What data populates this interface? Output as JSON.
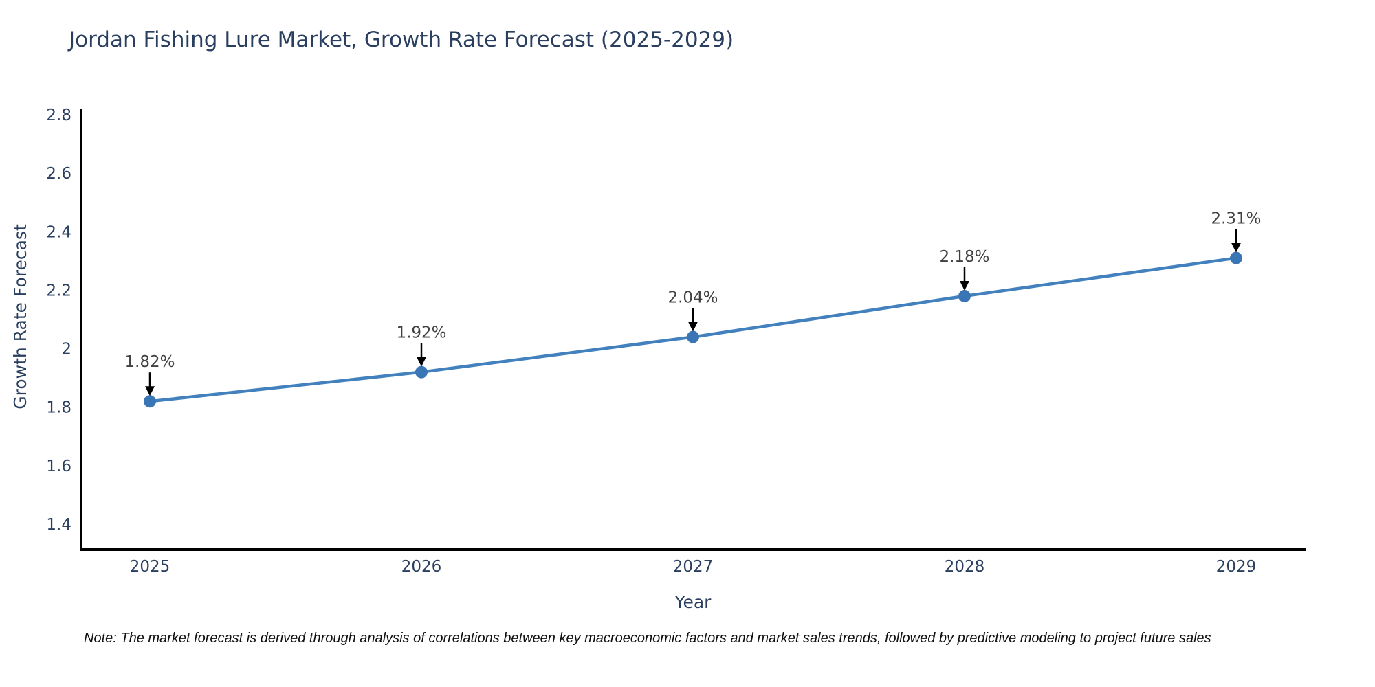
{
  "note": "Note: The market forecast is derived through analysis of correlations between key macroeconomic factors and market sales trends, followed by predictive modeling to project future sales",
  "chart_data": {
    "type": "line",
    "title": "Jordan Fishing Lure Market, Growth Rate Forecast (2025-2029)",
    "xlabel": "Year",
    "ylabel": "Growth Rate Forecast",
    "categories": [
      "2025",
      "2026",
      "2027",
      "2028",
      "2029"
    ],
    "series": [
      {
        "name": "Growth Rate Forecast",
        "values": [
          1.82,
          1.92,
          2.04,
          2.18,
          2.31
        ]
      }
    ],
    "point_labels": [
      "1.82%",
      "1.92%",
      "2.04%",
      "2.18%",
      "2.31%"
    ],
    "ylim": [
      1.3,
      2.85
    ],
    "yticks": [
      "1.4",
      "1.6",
      "1.8",
      "2",
      "2.2",
      "2.4",
      "2.6",
      "2.8"
    ],
    "grid": false,
    "legend": "none",
    "annotation_arrows": true,
    "colors": {
      "line": "#4281bd",
      "marker": "#3a76b5",
      "arrow": "#000000",
      "axis": "#000000",
      "axis_text": "#2a3f5f",
      "annotation_text": "#404040"
    }
  }
}
